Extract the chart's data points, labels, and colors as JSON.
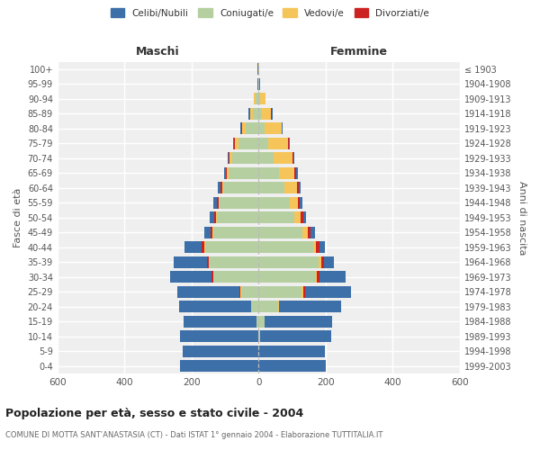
{
  "age_groups": [
    "100+",
    "95-99",
    "90-94",
    "85-89",
    "80-84",
    "75-79",
    "70-74",
    "65-69",
    "60-64",
    "55-59",
    "50-54",
    "45-49",
    "40-44",
    "35-39",
    "30-34",
    "25-29",
    "20-24",
    "15-19",
    "10-14",
    "5-9",
    "0-4"
  ],
  "birth_years": [
    "≤ 1903",
    "1904-1908",
    "1909-1913",
    "1914-1918",
    "1919-1923",
    "1924-1928",
    "1929-1933",
    "1934-1938",
    "1939-1943",
    "1944-1948",
    "1949-1953",
    "1954-1958",
    "1959-1963",
    "1964-1968",
    "1969-1973",
    "1974-1978",
    "1979-1983",
    "1984-1988",
    "1989-1993",
    "1994-1998",
    "1999-2003"
  ],
  "maschi": {
    "celibi": [
      2,
      1,
      1,
      3,
      3,
      5,
      5,
      7,
      8,
      10,
      15,
      20,
      52,
      100,
      125,
      185,
      215,
      218,
      235,
      225,
      235
    ],
    "coniugati": [
      1,
      2,
      8,
      18,
      38,
      60,
      78,
      90,
      105,
      118,
      125,
      135,
      160,
      148,
      135,
      52,
      22,
      5,
      0,
      0,
      0
    ],
    "vedovi": [
      0,
      0,
      5,
      8,
      12,
      10,
      8,
      5,
      3,
      2,
      2,
      2,
      2,
      1,
      1,
      3,
      0,
      0,
      0,
      0,
      0
    ],
    "divorziati": [
      0,
      0,
      0,
      0,
      1,
      2,
      2,
      2,
      6,
      5,
      5,
      5,
      8,
      5,
      3,
      2,
      0,
      0,
      0,
      0,
      0
    ]
  },
  "femmine": {
    "nubili": [
      1,
      1,
      1,
      2,
      2,
      2,
      3,
      4,
      5,
      7,
      8,
      12,
      15,
      28,
      78,
      138,
      185,
      202,
      212,
      198,
      202
    ],
    "coniugate": [
      0,
      1,
      5,
      10,
      18,
      28,
      45,
      60,
      78,
      92,
      108,
      132,
      162,
      178,
      170,
      128,
      58,
      18,
      5,
      0,
      0
    ],
    "vedove": [
      1,
      2,
      15,
      28,
      50,
      60,
      55,
      48,
      38,
      25,
      18,
      14,
      10,
      8,
      5,
      5,
      2,
      0,
      0,
      0,
      0
    ],
    "divorziate": [
      0,
      0,
      0,
      1,
      1,
      2,
      3,
      5,
      5,
      6,
      8,
      10,
      10,
      10,
      8,
      5,
      2,
      0,
      0,
      0,
      0
    ]
  },
  "colors": {
    "celibi": "#3d6fa8",
    "coniugati": "#b5cfa0",
    "vedovi": "#f5c55a",
    "divorziati": "#cc2222"
  },
  "title": "Popolazione per età, sesso e stato civile - 2004",
  "subtitle": "COMUNE DI MOTTA SANT’ANASTASIA (CT) - Dati ISTAT 1° gennaio 2004 - Elaborazione TUTTITALIA.IT",
  "xlabel_left": "Maschi",
  "xlabel_right": "Femmine",
  "ylabel_left": "Fasce di età",
  "ylabel_right": "Anni di nascita",
  "xlim": 600,
  "bg_color": "#efefef",
  "legend_labels": [
    "Celibi/Nubili",
    "Coniugati/e",
    "Vedovi/e",
    "Divorziati/e"
  ]
}
